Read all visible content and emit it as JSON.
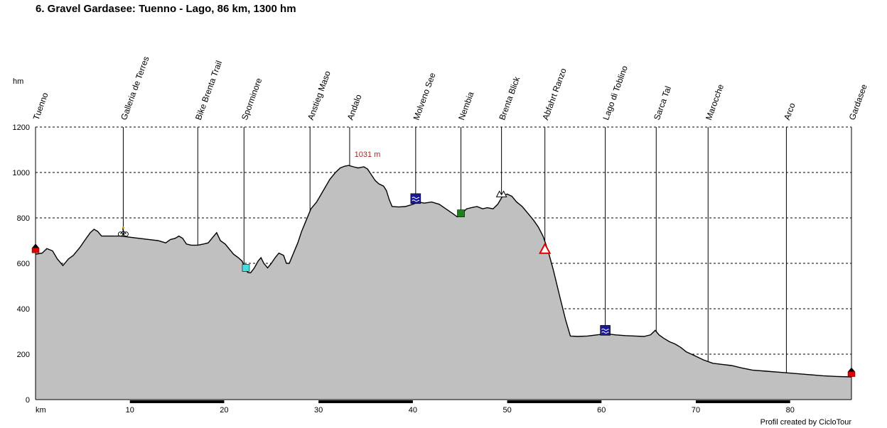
{
  "chart_data": {
    "type": "area",
    "title": "6. Gravel Gardasee: Tuenno - Lago, 86 km, 1300 hm",
    "xlabel": "km",
    "ylabel": "hm",
    "xlim": [
      0,
      86.5
    ],
    "ylim": [
      0,
      1200
    ],
    "x_ticks": [
      10,
      20,
      30,
      40,
      50,
      60,
      70,
      80
    ],
    "y_ticks": [
      0,
      200,
      400,
      600,
      800,
      1000,
      1200
    ],
    "grid": true,
    "fill_color": "#c0c0c0",
    "line_color": "#000000",
    "peak_annotation": {
      "x": 33.5,
      "y": 1031,
      "label": "1031 m",
      "color": "#a52a2a"
    },
    "profile": [
      [
        0,
        640
      ],
      [
        0.7,
        645
      ],
      [
        1.2,
        665
      ],
      [
        1.8,
        655
      ],
      [
        2.3,
        620
      ],
      [
        2.9,
        590
      ],
      [
        3.5,
        620
      ],
      [
        4.0,
        635
      ],
      [
        4.7,
        670
      ],
      [
        5.2,
        700
      ],
      [
        5.8,
        735
      ],
      [
        6.2,
        750
      ],
      [
        6.6,
        740
      ],
      [
        7.0,
        720
      ],
      [
        8.0,
        720
      ],
      [
        9.0,
        720
      ],
      [
        10.0,
        715
      ],
      [
        11.0,
        710
      ],
      [
        12.0,
        705
      ],
      [
        13.0,
        700
      ],
      [
        13.8,
        690
      ],
      [
        14.3,
        705
      ],
      [
        14.8,
        710
      ],
      [
        15.2,
        720
      ],
      [
        15.6,
        710
      ],
      [
        16.0,
        685
      ],
      [
        16.5,
        680
      ],
      [
        17.2,
        680
      ],
      [
        17.8,
        685
      ],
      [
        18.3,
        690
      ],
      [
        18.8,
        715
      ],
      [
        19.2,
        735
      ],
      [
        19.6,
        700
      ],
      [
        20.1,
        685
      ],
      [
        20.6,
        660
      ],
      [
        21.0,
        640
      ],
      [
        21.5,
        625
      ],
      [
        21.9,
        610
      ],
      [
        22.2,
        580
      ],
      [
        22.5,
        560
      ],
      [
        22.8,
        558
      ],
      [
        23.2,
        580
      ],
      [
        23.6,
        610
      ],
      [
        23.9,
        625
      ],
      [
        24.2,
        600
      ],
      [
        24.6,
        580
      ],
      [
        25.0,
        600
      ],
      [
        25.4,
        625
      ],
      [
        25.8,
        645
      ],
      [
        26.3,
        635
      ],
      [
        26.6,
        600
      ],
      [
        26.9,
        600
      ],
      [
        27.3,
        640
      ],
      [
        27.8,
        690
      ],
      [
        28.2,
        740
      ],
      [
        28.7,
        790
      ],
      [
        29.2,
        840
      ],
      [
        29.8,
        870
      ],
      [
        30.5,
        920
      ],
      [
        31.2,
        970
      ],
      [
        31.8,
        1000
      ],
      [
        32.3,
        1020
      ],
      [
        32.8,
        1028
      ],
      [
        33.2,
        1031
      ],
      [
        33.7,
        1025
      ],
      [
        34.2,
        1020
      ],
      [
        34.8,
        1025
      ],
      [
        35.2,
        1015
      ],
      [
        35.6,
        990
      ],
      [
        36.0,
        965
      ],
      [
        36.4,
        950
      ],
      [
        36.9,
        940
      ],
      [
        37.2,
        920
      ],
      [
        37.5,
        880
      ],
      [
        37.8,
        850
      ],
      [
        38.5,
        848
      ],
      [
        39.2,
        850
      ],
      [
        40.0,
        860
      ],
      [
        40.6,
        870
      ],
      [
        41.2,
        865
      ],
      [
        42.0,
        870
      ],
      [
        42.8,
        860
      ],
      [
        43.5,
        840
      ],
      [
        44.2,
        820
      ],
      [
        44.7,
        805
      ],
      [
        45.2,
        820
      ],
      [
        45.7,
        840
      ],
      [
        46.2,
        845
      ],
      [
        46.8,
        850
      ],
      [
        47.4,
        840
      ],
      [
        47.9,
        845
      ],
      [
        48.5,
        840
      ],
      [
        49.0,
        860
      ],
      [
        49.5,
        895
      ],
      [
        50.0,
        905
      ],
      [
        50.5,
        895
      ],
      [
        51.0,
        870
      ],
      [
        51.6,
        850
      ],
      [
        52.2,
        820
      ],
      [
        52.8,
        790
      ],
      [
        53.3,
        760
      ],
      [
        53.8,
        720
      ],
      [
        54.3,
        660
      ],
      [
        54.9,
        570
      ],
      [
        55.6,
        450
      ],
      [
        56.2,
        350
      ],
      [
        56.7,
        280
      ],
      [
        57.5,
        278
      ],
      [
        58.5,
        280
      ],
      [
        59.5,
        285
      ],
      [
        60.5,
        290
      ],
      [
        61.5,
        285
      ],
      [
        62.5,
        282
      ],
      [
        63.5,
        280
      ],
      [
        64.5,
        278
      ],
      [
        65.2,
        285
      ],
      [
        65.7,
        305
      ],
      [
        66.1,
        285
      ],
      [
        66.6,
        270
      ],
      [
        67.2,
        255
      ],
      [
        67.8,
        245
      ],
      [
        68.4,
        230
      ],
      [
        69.0,
        210
      ],
      [
        69.8,
        195
      ],
      [
        70.8,
        175
      ],
      [
        71.8,
        160
      ],
      [
        72.8,
        155
      ],
      [
        73.8,
        150
      ],
      [
        74.8,
        140
      ],
      [
        76.0,
        130
      ],
      [
        77.5,
        125
      ],
      [
        79.0,
        120
      ],
      [
        80.5,
        115
      ],
      [
        82.0,
        110
      ],
      [
        83.5,
        105
      ],
      [
        85.0,
        102
      ],
      [
        86.5,
        100
      ]
    ],
    "waypoints": [
      {
        "name": "Tuenno",
        "x": 0
      },
      {
        "name": "Galleria de Terres",
        "x": 9.3
      },
      {
        "name": "Bike Brenta Trail",
        "x": 17.2
      },
      {
        "name": "Sporminore",
        "x": 22.1
      },
      {
        "name": "Anstieg Maso",
        "x": 29.1
      },
      {
        "name": "Andalo",
        "x": 33.3
      },
      {
        "name": "Molveno See",
        "x": 40.3
      },
      {
        "name": "Nembia",
        "x": 45.1
      },
      {
        "name": "Brenta Blick",
        "x": 49.4
      },
      {
        "name": "Abfahrt Ranzo",
        "x": 54.0
      },
      {
        "name": "Lago di Toblino",
        "x": 60.4
      },
      {
        "name": "Sarca Tal",
        "x": 65.8
      },
      {
        "name": "Marocche",
        "x": 71.3
      },
      {
        "name": "Arco",
        "x": 79.6
      },
      {
        "name": "Gardasee",
        "x": 86.5
      }
    ],
    "markers": [
      {
        "icon": "red-start-flag-icon",
        "x": 0,
        "y": 665,
        "color": "#e00000"
      },
      {
        "icon": "bicycle-icon",
        "x": 9.3,
        "y": 735
      },
      {
        "icon": "cyan-marker-icon",
        "x": 22.3,
        "y": 580,
        "color": "#40e0e0"
      },
      {
        "icon": "blue-lake-icon",
        "x": 40.3,
        "y": 885,
        "color": "#1a1a9a"
      },
      {
        "icon": "green-marker-icon",
        "x": 45.1,
        "y": 820,
        "color": "#208020"
      },
      {
        "icon": "mountain-view-icon",
        "x": 49.4,
        "y": 905
      },
      {
        "icon": "warning-triangle-icon",
        "x": 54.0,
        "y": 660,
        "color": "#e00000"
      },
      {
        "icon": "blue-lake-icon",
        "x": 60.4,
        "y": 305,
        "color": "#1a1a9a"
      },
      {
        "icon": "red-finish-flag-icon",
        "x": 86.5,
        "y": 120,
        "color": "#e00000"
      }
    ]
  },
  "footer": {
    "credit": "Profil created by CicloTour"
  }
}
